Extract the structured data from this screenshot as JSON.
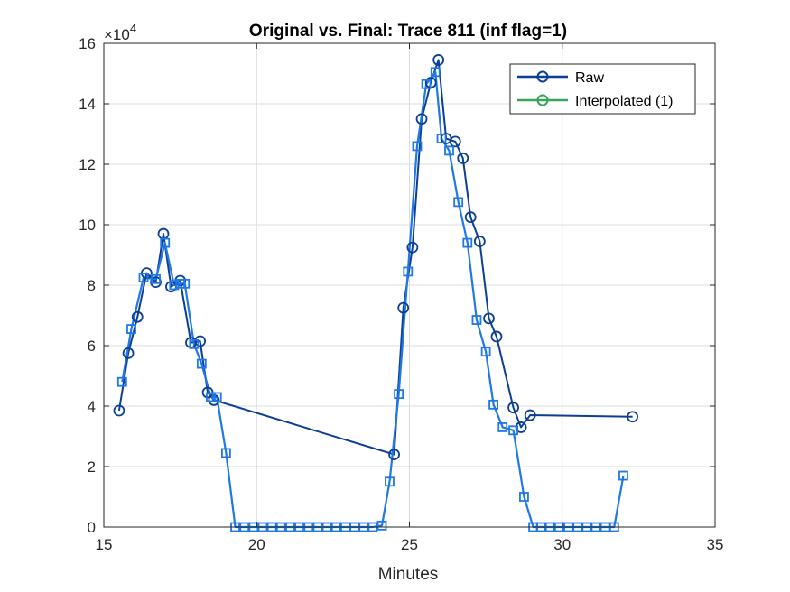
{
  "chart_data": {
    "type": "line",
    "title": "Original vs. Final: Trace 811 (inf flag=1)",
    "xlabel": "Minutes",
    "ylabel": "",
    "exponent_label": "×10",
    "exponent_power": "4",
    "xlim": [
      15,
      35
    ],
    "ylim": [
      0,
      16
    ],
    "xticks": [
      "15",
      "20",
      "25",
      "30",
      "35"
    ],
    "yticks": [
      "0",
      "2",
      "4",
      "6",
      "8",
      "10",
      "12",
      "14",
      "16"
    ],
    "grid": true,
    "legend_position": "top-right",
    "colors": {
      "raw": "#0b3f94",
      "interpolated": "#3aa35b",
      "final": "#1f78e6"
    },
    "series": [
      {
        "name": "Raw",
        "marker": "circle",
        "x": [
          15.5,
          15.8,
          16.1,
          16.4,
          16.7,
          16.95,
          17.2,
          17.5,
          17.85,
          18.15,
          18.4,
          18.6,
          24.5,
          24.8,
          25.1,
          25.4,
          25.7,
          25.95,
          26.2,
          26.5,
          26.75,
          27.0,
          27.3,
          27.6,
          27.85,
          28.4,
          28.65,
          28.95,
          32.3
        ],
        "y": [
          3.85,
          5.75,
          6.95,
          8.4,
          8.1,
          9.7,
          7.95,
          8.15,
          6.1,
          6.15,
          4.45,
          4.2,
          2.4,
          7.25,
          9.25,
          13.5,
          14.7,
          15.45,
          12.85,
          12.75,
          12.2,
          10.25,
          9.45,
          6.9,
          6.3,
          3.95,
          3.3,
          3.7,
          3.65
        ]
      },
      {
        "name": "Interpolated (1)",
        "marker": "circle",
        "x": [],
        "y": []
      },
      {
        "name": "",
        "marker": "square",
        "x": [
          15.6,
          15.9,
          16.3,
          16.7,
          17.0,
          17.3,
          17.5,
          17.65,
          17.95,
          18.2,
          18.5,
          18.7,
          19.0,
          19.3,
          19.6,
          19.9,
          20.2,
          20.5,
          20.8,
          21.1,
          21.4,
          21.7,
          22.0,
          22.3,
          22.6,
          22.9,
          23.2,
          23.5,
          23.8,
          24.1,
          24.35,
          24.65,
          24.95,
          25.25,
          25.55,
          25.85,
          26.05,
          26.3,
          26.6,
          26.9,
          27.2,
          27.5,
          27.75,
          28.05,
          28.4,
          28.75,
          29.05,
          29.3,
          29.6,
          29.9,
          30.2,
          30.5,
          30.8,
          31.1,
          31.4,
          31.7,
          32.0
        ],
        "y": [
          4.8,
          6.55,
          8.25,
          8.2,
          9.4,
          8.0,
          8.05,
          8.05,
          6.05,
          5.4,
          4.3,
          4.3,
          2.45,
          0,
          0,
          0,
          0,
          0,
          0,
          0,
          0,
          0,
          0,
          0,
          0,
          0,
          0,
          0,
          0,
          0.05,
          1.5,
          4.4,
          8.45,
          12.6,
          14.65,
          15.05,
          12.85,
          12.45,
          10.75,
          9.4,
          6.85,
          5.8,
          4.05,
          3.3,
          3.2,
          1.0,
          0,
          0,
          0,
          0,
          0,
          0,
          0,
          0,
          0,
          0,
          1.7
        ]
      }
    ]
  }
}
